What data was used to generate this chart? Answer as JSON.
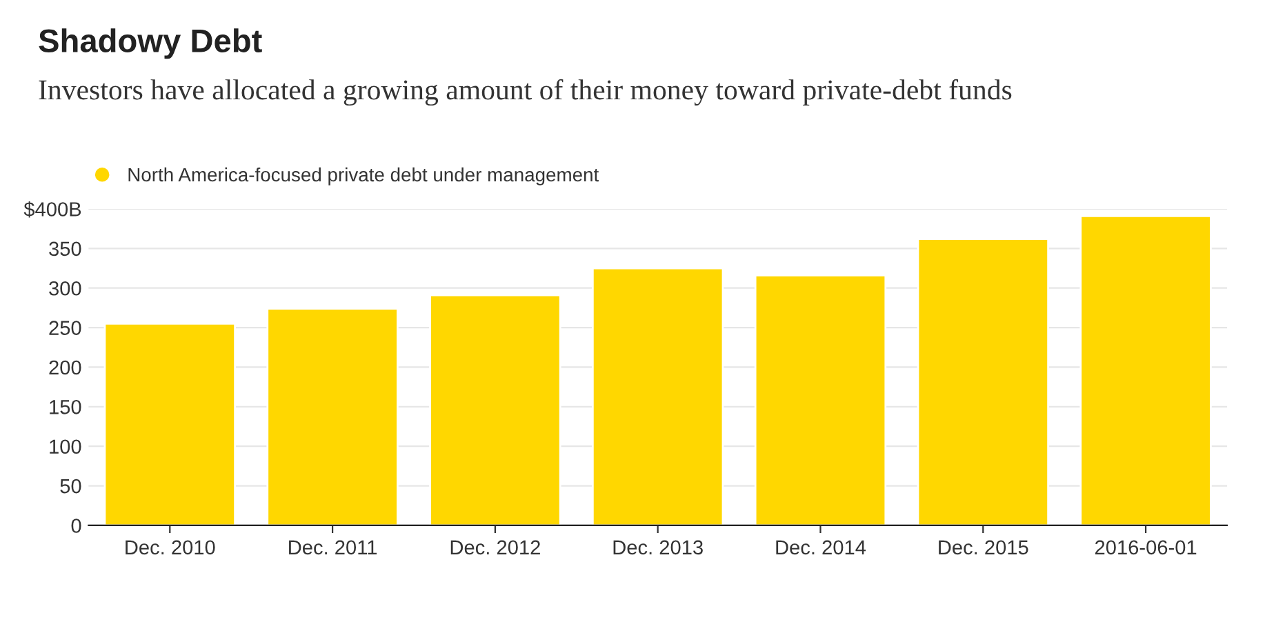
{
  "chart_data": {
    "type": "bar",
    "title": "Shadowy Debt",
    "subtitle": "Investors have allocated a growing amount of their money toward private-debt funds",
    "categories": [
      "Dec. 2010",
      "Dec. 2011",
      "Dec. 2012",
      "Dec. 2013",
      "Dec. 2014",
      "Dec. 2015",
      "2016-06-01"
    ],
    "series": [
      {
        "name": "North America-focused private debt under management",
        "color": "#ffd700",
        "values": [
          255,
          274,
          291,
          325,
          316,
          362,
          391
        ]
      }
    ],
    "ylim": [
      0,
      400
    ],
    "yticks": [
      0,
      50,
      100,
      150,
      200,
      250,
      300,
      350,
      {
        "value": 400,
        "label": "$400B"
      }
    ],
    "grid": "y",
    "legend": "top left"
  }
}
